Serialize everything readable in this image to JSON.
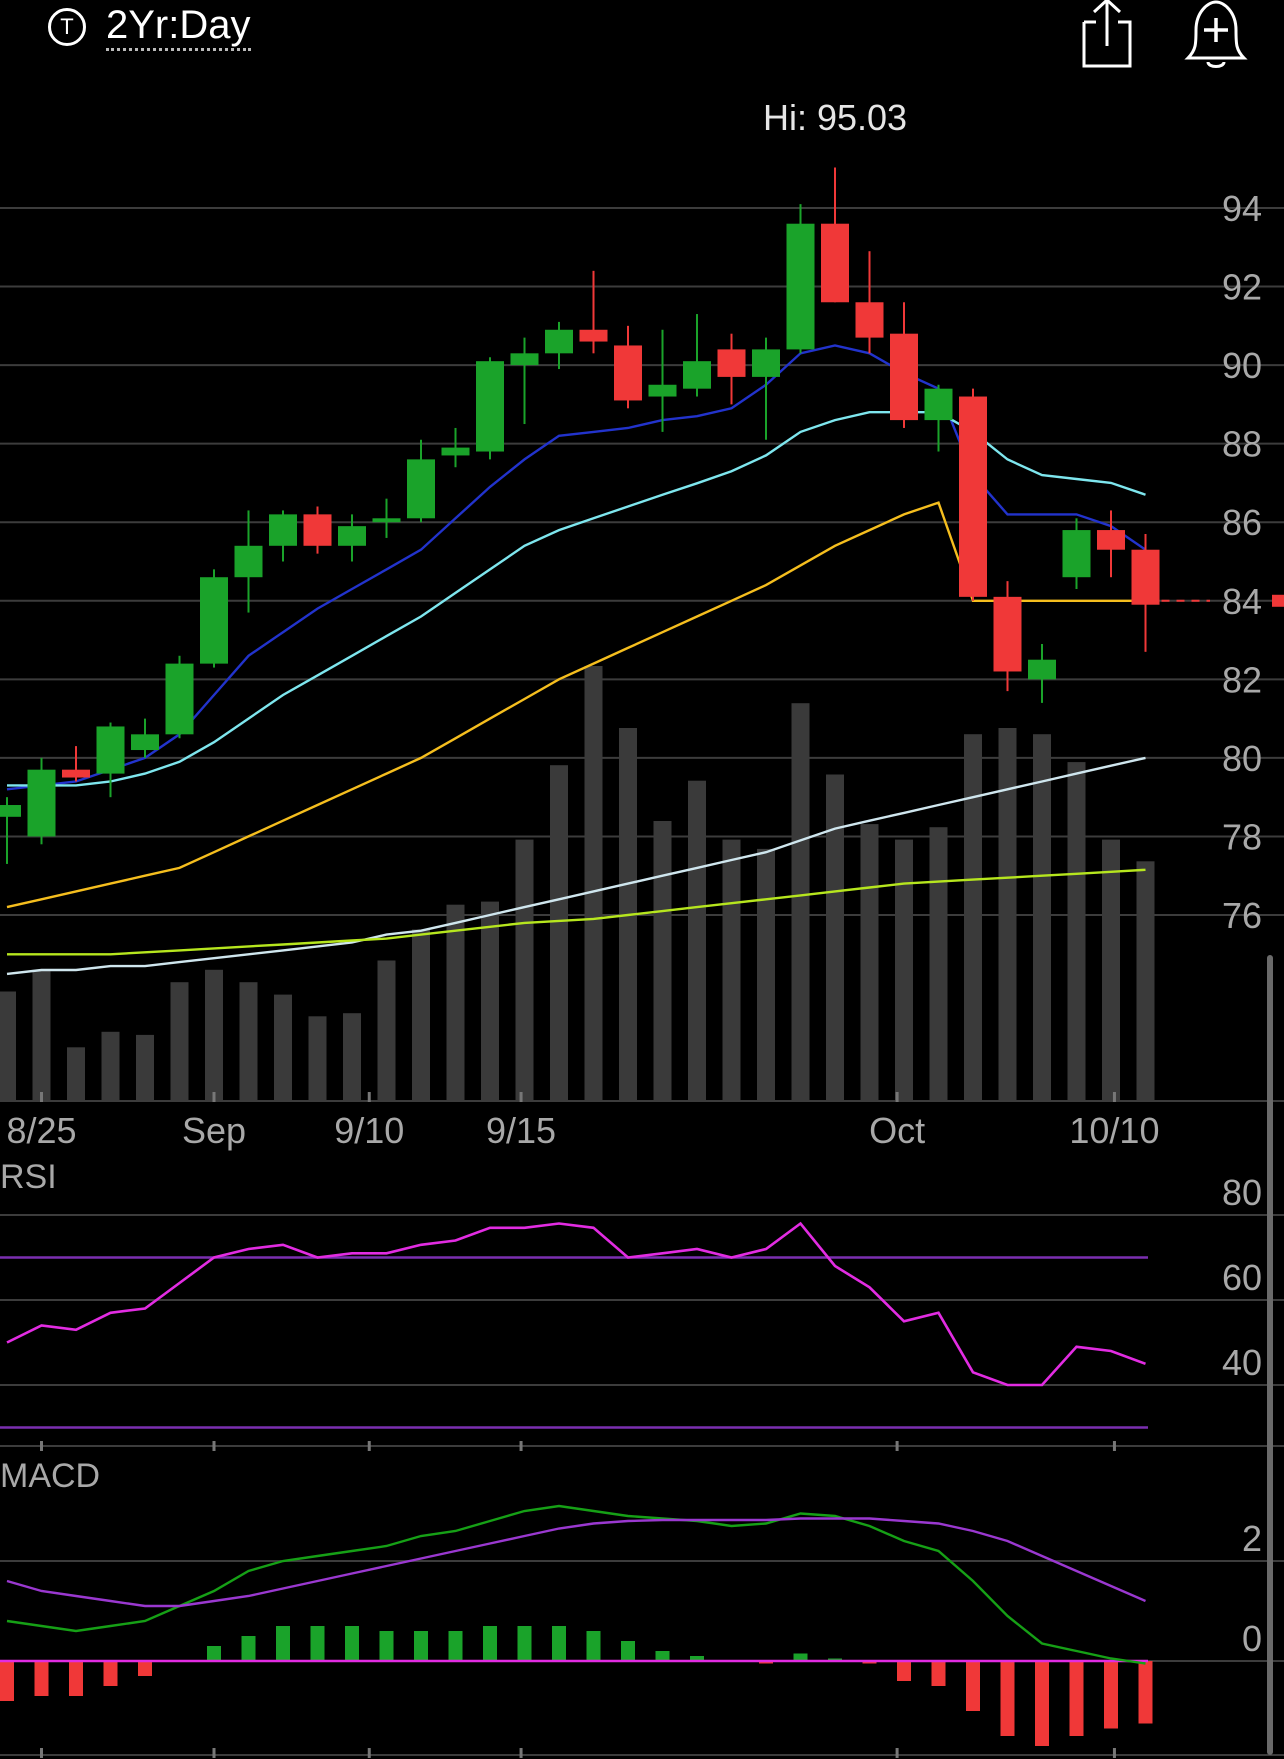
{
  "header": {
    "ticker_icon": "T",
    "range_label": "2Yr:Day",
    "share_icon": "share-icon",
    "alert_icon": "add-alert-bell-icon"
  },
  "colors": {
    "up": "#1aa32a",
    "down": "#f03838",
    "volume": "#3a3a3a",
    "grid": "#3c3c3c",
    "ma_blue": "#2233cc",
    "ma_cyan": "#7ee6ee",
    "ma_yellow": "#f5be1e",
    "ma_white": "#cfe6ee",
    "ma_lime": "#b6e61e",
    "rsi": "#e22ce2",
    "rsi_band": "#7a2fb0",
    "macd": "#16a016",
    "signal": "#9a38d0",
    "macd_zero": "#e22ce2"
  },
  "chart_data": [
    {
      "type": "candlestick",
      "panel": "price",
      "high_label": "Hi: 95.03",
      "current_price_marker": 84.0,
      "y_ticks": [
        94,
        92,
        90,
        88,
        86,
        84,
        82,
        80,
        78,
        76
      ],
      "ylim": [
        74.5,
        95.5
      ],
      "x_ticks": [
        {
          "label": "8/25",
          "index": 1
        },
        {
          "label": "Sep",
          "index": 6
        },
        {
          "label": "9/10",
          "index": 10.5
        },
        {
          "label": "9/15",
          "index": 14.9
        },
        {
          "label": "Oct",
          "index": 25.8
        },
        {
          "label": "10/10",
          "index": 32.1
        }
      ],
      "candles": [
        {
          "o": 78.5,
          "h": 79.0,
          "l": 77.3,
          "c": 78.8
        },
        {
          "o": 78.0,
          "h": 80.0,
          "l": 77.8,
          "c": 79.7
        },
        {
          "o": 79.7,
          "h": 80.3,
          "l": 79.4,
          "c": 79.5
        },
        {
          "o": 79.6,
          "h": 80.9,
          "l": 79.0,
          "c": 80.8
        },
        {
          "o": 80.2,
          "h": 81.0,
          "l": 80.0,
          "c": 80.6
        },
        {
          "o": 80.6,
          "h": 82.6,
          "l": 80.5,
          "c": 82.4
        },
        {
          "o": 82.4,
          "h": 84.8,
          "l": 82.3,
          "c": 84.6
        },
        {
          "o": 84.6,
          "h": 86.3,
          "l": 83.7,
          "c": 85.4
        },
        {
          "o": 85.4,
          "h": 86.3,
          "l": 85.0,
          "c": 86.2
        },
        {
          "o": 86.2,
          "h": 86.4,
          "l": 85.2,
          "c": 85.4
        },
        {
          "o": 85.4,
          "h": 86.2,
          "l": 85.0,
          "c": 85.9
        },
        {
          "o": 86.0,
          "h": 86.6,
          "l": 85.6,
          "c": 86.1
        },
        {
          "o": 86.1,
          "h": 88.1,
          "l": 86.0,
          "c": 87.6
        },
        {
          "o": 87.7,
          "h": 88.4,
          "l": 87.4,
          "c": 87.9
        },
        {
          "o": 87.8,
          "h": 90.2,
          "l": 87.6,
          "c": 90.1
        },
        {
          "o": 90.0,
          "h": 90.7,
          "l": 88.5,
          "c": 90.3
        },
        {
          "o": 90.3,
          "h": 91.1,
          "l": 89.9,
          "c": 90.9
        },
        {
          "o": 90.9,
          "h": 92.4,
          "l": 90.3,
          "c": 90.6
        },
        {
          "o": 90.5,
          "h": 91.0,
          "l": 88.9,
          "c": 89.1
        },
        {
          "o": 89.2,
          "h": 90.9,
          "l": 88.3,
          "c": 89.5
        },
        {
          "o": 89.4,
          "h": 91.3,
          "l": 89.2,
          "c": 90.1
        },
        {
          "o": 90.4,
          "h": 90.8,
          "l": 89.0,
          "c": 89.7
        },
        {
          "o": 89.7,
          "h": 90.7,
          "l": 88.1,
          "c": 90.4
        },
        {
          "o": 90.4,
          "h": 94.1,
          "l": 90.3,
          "c": 93.6
        },
        {
          "o": 93.6,
          "h": 95.03,
          "l": 91.6,
          "c": 91.6
        },
        {
          "o": 91.6,
          "h": 92.9,
          "l": 90.3,
          "c": 90.7
        },
        {
          "o": 90.8,
          "h": 91.6,
          "l": 88.4,
          "c": 88.6
        },
        {
          "o": 88.6,
          "h": 89.5,
          "l": 87.8,
          "c": 89.4
        },
        {
          "o": 89.2,
          "h": 89.4,
          "l": 84.0,
          "c": 84.1
        },
        {
          "o": 84.1,
          "h": 84.5,
          "l": 81.7,
          "c": 82.2
        },
        {
          "o": 82.0,
          "h": 82.9,
          "l": 81.4,
          "c": 82.5
        },
        {
          "o": 84.6,
          "h": 86.1,
          "l": 84.3,
          "c": 85.8
        },
        {
          "o": 85.8,
          "h": 86.3,
          "l": 84.6,
          "c": 85.3
        },
        {
          "o": 85.3,
          "h": 85.7,
          "l": 82.7,
          "c": 83.9
        }
      ],
      "volume": [
        35,
        42,
        17,
        22,
        21,
        38,
        42,
        38,
        34,
        27,
        28,
        45,
        55,
        63,
        64,
        84,
        108,
        140,
        120,
        90,
        103,
        84,
        81,
        128,
        105,
        89,
        84,
        88,
        118,
        120,
        118,
        109,
        84,
        77
      ],
      "moving_averages": [
        {
          "color_key": "ma_blue",
          "values": [
            79.2,
            79.3,
            79.4,
            79.7,
            80.0,
            80.6,
            81.6,
            82.6,
            83.2,
            83.8,
            84.3,
            84.8,
            85.3,
            86.1,
            86.9,
            87.6,
            88.2,
            88.3,
            88.4,
            88.6,
            88.7,
            88.9,
            89.5,
            90.3,
            90.5,
            90.3,
            89.8,
            89.4,
            87.2,
            86.2,
            86.2,
            86.2,
            85.9,
            85.3
          ]
        },
        {
          "color_key": "ma_cyan",
          "values": [
            79.3,
            79.3,
            79.3,
            79.4,
            79.6,
            79.9,
            80.4,
            81.0,
            81.6,
            82.1,
            82.6,
            83.1,
            83.6,
            84.2,
            84.8,
            85.4,
            85.8,
            86.1,
            86.4,
            86.7,
            86.99,
            87.3,
            87.7,
            88.3,
            88.6,
            88.8,
            88.8,
            88.8,
            88.3,
            87.6,
            87.2,
            87.1,
            87.0,
            86.7
          ]
        },
        {
          "color_key": "ma_yellow",
          "values": [
            76.2,
            76.4,
            76.6,
            76.8,
            77.0,
            77.2,
            77.6,
            78.0,
            78.4,
            78.8,
            79.2,
            79.6,
            80.0,
            80.5,
            81.0,
            81.5,
            82.0,
            82.4,
            82.8,
            83.2,
            83.6,
            84.0,
            84.4,
            84.9,
            85.4,
            85.8,
            86.2,
            86.5,
            84.0,
            84.0,
            84.0,
            84.0,
            84.0,
            84.0
          ]
        },
        {
          "color_key": "ma_white",
          "values": [
            74.5,
            74.6,
            74.6,
            74.7,
            74.7,
            74.8,
            74.9,
            75.0,
            75.1,
            75.2,
            75.3,
            75.5,
            75.6,
            75.8,
            76.0,
            76.2,
            76.4,
            76.6,
            76.8,
            77.0,
            77.2,
            77.4,
            77.6,
            77.9,
            78.2,
            78.4,
            78.6,
            78.8,
            79.0,
            79.2,
            79.4,
            79.6,
            79.8,
            80.0
          ]
        },
        {
          "color_key": "ma_lime",
          "values": [
            75.0,
            75.0,
            75.0,
            75.0,
            75.05,
            75.1,
            75.15,
            75.2,
            75.25,
            75.3,
            75.35,
            75.4,
            75.5,
            75.6,
            75.7,
            75.8,
            75.85,
            75.9,
            76.0,
            76.1,
            76.2,
            76.3,
            76.4,
            76.5,
            76.6,
            76.7,
            76.8,
            76.85,
            76.9,
            76.95,
            77.0,
            77.05,
            77.1,
            77.15
          ]
        }
      ]
    },
    {
      "type": "line",
      "panel": "rsi",
      "title": "RSI",
      "y_ticks": [
        80,
        60,
        40
      ],
      "ylim": [
        30,
        82
      ],
      "bands": [
        70,
        30
      ],
      "values": [
        50,
        54,
        53,
        57,
        58,
        64,
        70,
        72,
        73,
        70,
        71,
        71,
        73,
        74,
        77,
        77,
        78,
        77,
        70,
        71,
        72,
        70,
        72,
        78,
        68,
        63,
        55,
        57,
        43,
        40,
        40,
        49,
        48,
        45
      ]
    },
    {
      "type": "line",
      "panel": "macd",
      "title": "MACD",
      "y_ticks": [
        2,
        0
      ],
      "ylim": [
        -3.0,
        3.8
      ],
      "series": [
        {
          "color_key": "macd",
          "values": [
            0.8,
            0.7,
            0.6,
            0.7,
            0.8,
            1.1,
            1.4,
            1.8,
            2.0,
            2.1,
            2.2,
            2.3,
            2.5,
            2.6,
            2.8,
            3.0,
            3.1,
            3.0,
            2.9,
            2.85,
            2.8,
            2.7,
            2.75,
            2.95,
            2.9,
            2.7,
            2.4,
            2.2,
            1.6,
            0.9,
            0.35,
            0.2,
            0.05,
            -0.05
          ]
        },
        {
          "color_key": "signal",
          "values": [
            1.6,
            1.4,
            1.3,
            1.2,
            1.1,
            1.1,
            1.2,
            1.3,
            1.45,
            1.6,
            1.75,
            1.9,
            2.05,
            2.2,
            2.35,
            2.5,
            2.65,
            2.75,
            2.8,
            2.82,
            2.82,
            2.82,
            2.82,
            2.85,
            2.85,
            2.85,
            2.8,
            2.75,
            2.6,
            2.4,
            2.1,
            1.8,
            1.5,
            1.2
          ]
        }
      ],
      "histogram": [
        -0.8,
        -0.7,
        -0.7,
        -0.5,
        -0.3,
        0.0,
        0.3,
        0.5,
        0.7,
        0.7,
        0.7,
        0.6,
        0.6,
        0.6,
        0.7,
        0.7,
        0.7,
        0.6,
        0.4,
        0.2,
        0.1,
        0.0,
        -0.05,
        0.15,
        0.05,
        -0.05,
        -0.4,
        -0.5,
        -1.0,
        -1.5,
        -1.7,
        -1.5,
        -1.35,
        -1.25
      ]
    }
  ]
}
